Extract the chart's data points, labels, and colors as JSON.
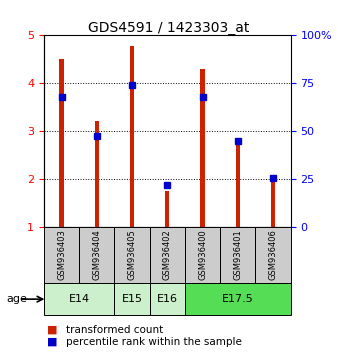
{
  "title": "GDS4591 / 1423303_at",
  "samples": [
    "GSM936403",
    "GSM936404",
    "GSM936405",
    "GSM936402",
    "GSM936400",
    "GSM936401",
    "GSM936406"
  ],
  "transformed_counts": [
    4.5,
    3.2,
    4.78,
    1.75,
    4.3,
    2.85,
    1.95
  ],
  "percentile_ranks": [
    3.72,
    2.9,
    3.97,
    1.87,
    3.72,
    2.78,
    2.02
  ],
  "age_groups": [
    {
      "label": "E14",
      "start": 0,
      "end": 1,
      "color": "#ccf0cc"
    },
    {
      "label": "E15",
      "start": 2,
      "end": 2,
      "color": "#ccf0cc"
    },
    {
      "label": "E16",
      "start": 3,
      "end": 3,
      "color": "#ccf0cc"
    },
    {
      "label": "E17.5",
      "start": 4,
      "end": 6,
      "color": "#55dd55"
    }
  ],
  "ylim_left": [
    1,
    5
  ],
  "ylim_right": [
    0,
    100
  ],
  "left_ticks": [
    1,
    2,
    3,
    4,
    5
  ],
  "right_ticks": [
    0,
    25,
    50,
    75,
    100
  ],
  "right_tick_labels": [
    "0",
    "25",
    "50",
    "75",
    "100%"
  ],
  "bar_color": "#cc2200",
  "dot_color": "#0000cc",
  "sample_bg_color": "#cccccc",
  "bar_width": 0.12,
  "tick_fontsize": 8,
  "label_fontsize": 7.5
}
